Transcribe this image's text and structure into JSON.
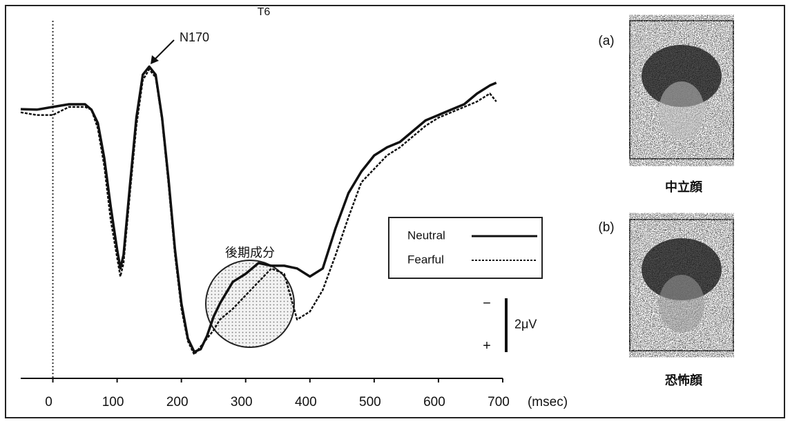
{
  "chart_data": {
    "type": "line",
    "title": "T6",
    "x_label": "(msec)",
    "x": [
      -50,
      -25,
      0,
      25,
      50,
      60,
      70,
      80,
      90,
      100,
      105,
      110,
      120,
      130,
      140,
      150,
      160,
      170,
      180,
      190,
      200,
      210,
      220,
      230,
      240,
      250,
      260,
      280,
      300,
      320,
      340,
      360,
      380,
      400,
      420,
      440,
      460,
      480,
      500,
      520,
      540,
      560,
      580,
      600,
      620,
      640,
      660,
      680,
      690
    ],
    "series": [
      {
        "name": "Neutral",
        "color": "#111111",
        "line_style": "solid",
        "values": [
          0.08,
          0.1,
          0,
          -0.1,
          -0.1,
          0.1,
          0.6,
          1.9,
          3.7,
          5.3,
          6.0,
          5.5,
          2.9,
          0.4,
          -1.2,
          -1.5,
          -1.2,
          0.4,
          2.7,
          5.3,
          7.3,
          8.6,
          9.1,
          9.0,
          8.5,
          7.8,
          7.3,
          6.5,
          6.2,
          5.8,
          5.9,
          5.9,
          6.0,
          6.3,
          6.0,
          4.5,
          3.2,
          2.4,
          1.8,
          1.5,
          1.3,
          0.9,
          0.5,
          0.3,
          0.1,
          -0.1,
          -0.5,
          -0.8,
          -0.9
        ]
      },
      {
        "name": "Fearful",
        "color": "#111111",
        "line_style": "dashed",
        "values": [
          0.2,
          0.3,
          0.3,
          0,
          0,
          0.1,
          0.8,
          2.2,
          4.2,
          5.6,
          6.3,
          5.8,
          3.2,
          0.7,
          -1.0,
          -1.4,
          -1.1,
          0.5,
          2.9,
          5.5,
          7.5,
          8.7,
          9.2,
          8.9,
          8.6,
          8.3,
          7.9,
          7.5,
          7.0,
          6.5,
          6.0,
          6.2,
          7.9,
          7.6,
          6.8,
          5.5,
          4.1,
          2.8,
          2.3,
          1.8,
          1.5,
          1.1,
          0.7,
          0.4,
          0.2,
          0,
          -0.2,
          -0.5,
          -0.2
        ]
      }
    ],
    "xlim": [
      -50,
      700
    ],
    "xticks": [
      0,
      100,
      200,
      300,
      400,
      500,
      600,
      700
    ],
    "ylim": [
      -2.5,
      9.7
    ],
    "y_inverted": true,
    "scale_bar": {
      "label": "2μV",
      "value": 2,
      "minus": "−",
      "plus": "+"
    },
    "annotations": [
      "N170",
      "後期成分"
    ],
    "legend": "right"
  },
  "images": [
    {
      "label": "(a)",
      "caption": "中立顔"
    },
    {
      "label": "(b)",
      "caption": "恐怖顔"
    }
  ]
}
